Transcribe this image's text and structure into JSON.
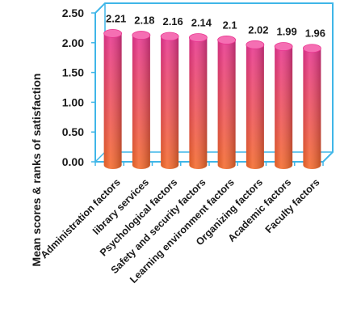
{
  "chart_data": {
    "type": "bar",
    "title": "",
    "xlabel": "",
    "ylabel": "Mean scores & ranks of satisfaction",
    "ylim": [
      0,
      2.5
    ],
    "yticks": [
      "0.00",
      "0.50",
      "1.00",
      "1.50",
      "2.00",
      "2.50"
    ],
    "grid": false,
    "categories": [
      "Administration factors",
      "library services",
      "Psychological factors",
      "Safety and security factors",
      "Learning environment factors",
      "Organizing factors",
      "Academic factors",
      "Faculty factors"
    ],
    "values": [
      2.21,
      2.18,
      2.16,
      2.14,
      2.1,
      2.02,
      1.99,
      1.96
    ],
    "data_labels": [
      "2.21",
      "2.18",
      "2.16",
      "2.14",
      "2.1",
      "2.02",
      "1.99",
      "1.96"
    ],
    "colors": {
      "bar_top": "#e8358f",
      "bar_bottom": "#f46a2a",
      "frame": "#3fb6e8"
    }
  }
}
